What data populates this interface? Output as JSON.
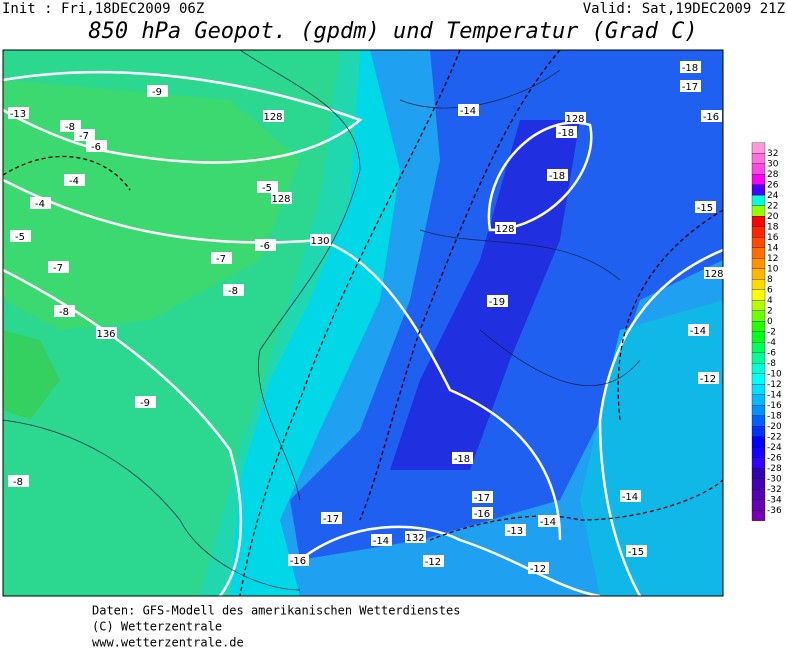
{
  "header": {
    "init": "Init : Fri,18DEC2009 06Z",
    "valid": "Valid: Sat,19DEC2009 21Z",
    "title": "850 hPa Geopot. (gpdm) und Temperatur (Grad C)"
  },
  "map_labels": [
    "-13",
    "-9",
    "128",
    "-8",
    "-7",
    "-6",
    "-4",
    "-4",
    "-5",
    "-7",
    "-8",
    "136",
    "-9",
    "-8",
    "-5",
    "128",
    "-6",
    "130",
    "-7",
    "-8",
    "-14",
    "128",
    "-18",
    "-18",
    "128",
    "-19",
    "-18",
    "-17",
    "-16",
    "-15",
    "128",
    "-14",
    "-12",
    "-18",
    "-17",
    "-16",
    "-14",
    "-13",
    "-14",
    "-17",
    "-14",
    "132",
    "-16",
    "-12",
    "-15",
    "-12"
  ],
  "colorbar": [
    32,
    30,
    28,
    26,
    24,
    22,
    20,
    18,
    16,
    14,
    12,
    10,
    8,
    6,
    4,
    2,
    0,
    -2,
    -4,
    -6,
    -8,
    -10,
    -12,
    -14,
    -16,
    -18,
    -20,
    -22,
    -24,
    -26,
    -28,
    -30,
    -32,
    -34,
    -36
  ],
  "footer": [
    "Daten: GFS-Modell des amerikanischen Wetterdienstes",
    "(C) Wetterzentrale",
    "www.wetterzentrale.de"
  ]
}
